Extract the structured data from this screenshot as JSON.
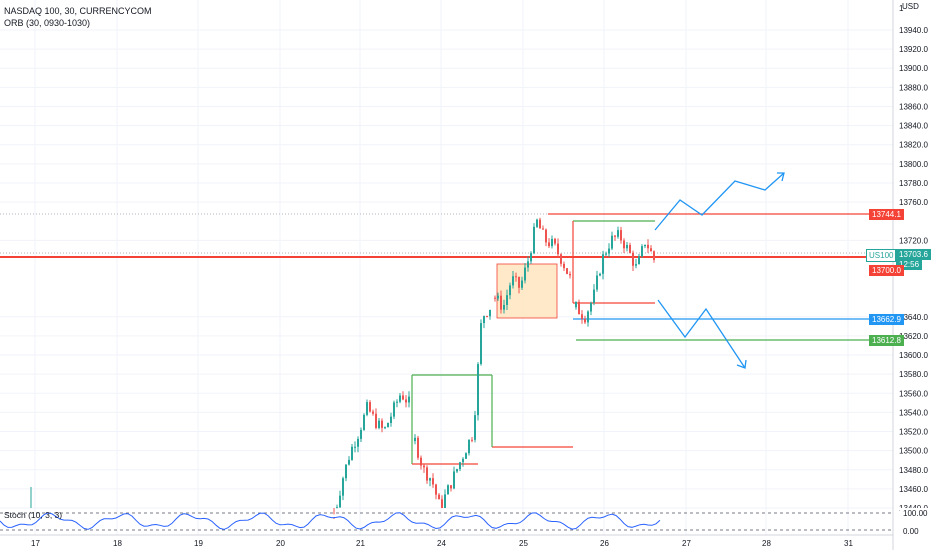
{
  "header": {
    "title": "NASDAQ 100, 30, CURRENCYCOM",
    "indicator": "ORB (30, 0930-1030)"
  },
  "axis": {
    "currency": "USD",
    "price_labels": [
      "13940.0",
      "13920.0",
      "13900.0",
      "13880.0",
      "13860.0",
      "13840.0",
      "13820.0",
      "13800.0",
      "13780.0",
      "13760.0",
      "13720.0",
      "13640.0",
      "13620.0",
      "13600.0",
      "13580.0",
      "13560.0",
      "13540.0",
      "13520.0",
      "13500.0",
      "13480.0",
      "13460.0",
      "13440.0"
    ],
    "top_partial": "1",
    "date_labels": [
      "17",
      "18",
      "19",
      "20",
      "21",
      "24",
      "25",
      "26",
      "27",
      "28",
      "31"
    ]
  },
  "price_tags": {
    "resistance": "13744.1",
    "symbol": "US100",
    "current": "13703.6",
    "countdown": "12:56",
    "level_red": "13700.0",
    "level_blue": "13662.9",
    "level_green": "13612.8"
  },
  "stoch": {
    "label": "Stoch (10, 3, 3)",
    "upper": "100.00",
    "lower": "0.00"
  },
  "colors": {
    "bull": "#26a69a",
    "bear": "#ef5350",
    "orb_high": "#4caf50",
    "orb_low": "#f44336",
    "blue": "#2196f3",
    "stoch": "#2962ff"
  },
  "chart_data": {
    "type": "candlestick",
    "price_range": [
      13430,
      13960
    ],
    "levels": [
      13744.1,
      13700.0,
      13662.9,
      13612.8
    ],
    "series": [
      {
        "day": "21",
        "values": [
          13430,
          13470,
          13500,
          13520,
          13545,
          13530,
          13520,
          13540,
          13560,
          13550
        ]
      },
      {
        "day": "24",
        "values": [
          13510,
          13480,
          13470,
          13440,
          13460,
          13480,
          13500,
          13520,
          13640,
          13650
        ]
      },
      {
        "day": "25",
        "values": [
          13660,
          13650,
          13680,
          13670,
          13700,
          13740,
          13720,
          13715,
          13700,
          13680
        ]
      },
      {
        "day": "26",
        "values": [
          13650,
          13640,
          13660,
          13700,
          13720,
          13725,
          13710,
          13690,
          13720,
          13700
        ]
      }
    ]
  }
}
